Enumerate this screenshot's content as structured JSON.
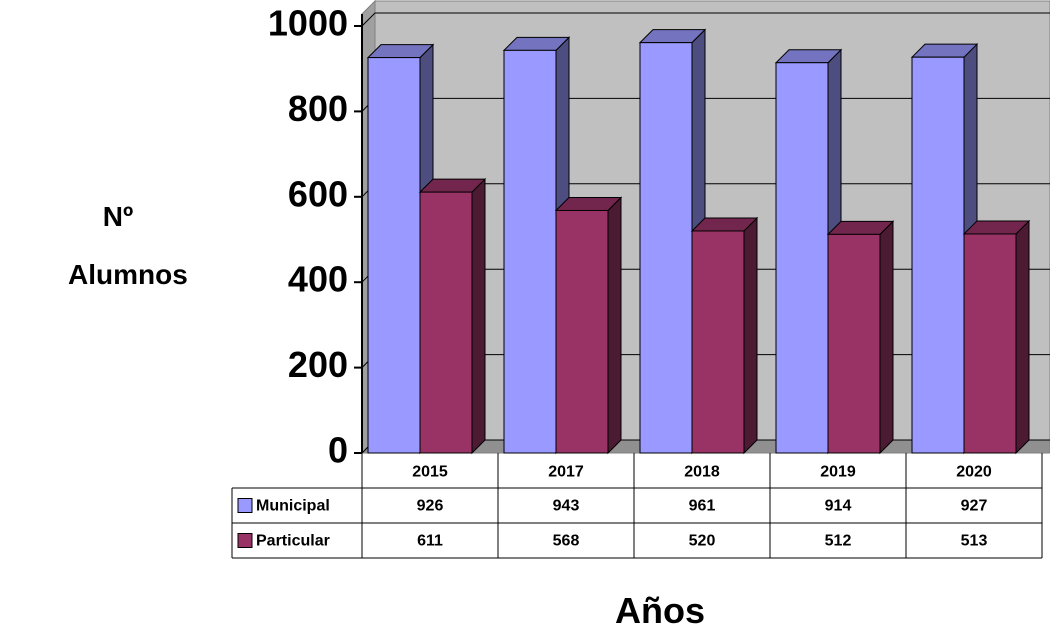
{
  "chart_data": {
    "type": "bar3d",
    "y_label": "Nº Alumnos",
    "x_label": "Años",
    "categories": [
      "2015",
      "2017",
      "2018",
      "2019",
      "2020"
    ],
    "series": [
      {
        "name": "Municipal",
        "color": "#9999ff",
        "values": [
          926,
          943,
          961,
          914,
          927
        ]
      },
      {
        "name": "Particular",
        "color": "#993366",
        "values": [
          611,
          568,
          520,
          512,
          513
        ]
      }
    ],
    "ylim": [
      0,
      1000
    ],
    "yticks": [
      0,
      200,
      400,
      600,
      800,
      1000
    ],
    "grid": true
  }
}
